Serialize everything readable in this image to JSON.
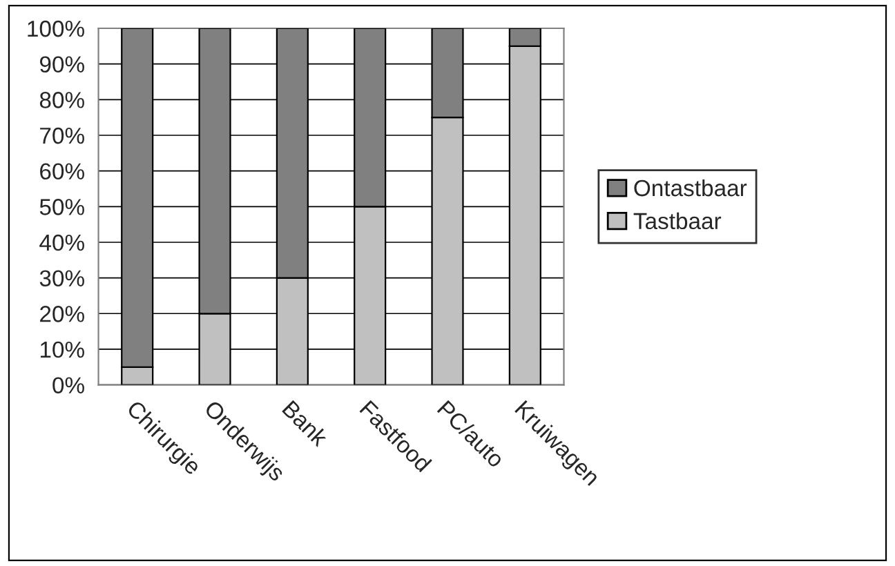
{
  "chart_data": {
    "type": "bar",
    "stacked": true,
    "categories": [
      "Chirurgie",
      "Onderwijs",
      "Bank",
      "Fastfood",
      "PC/auto",
      "Kruiwagen"
    ],
    "series": [
      {
        "name": "Tastbaar",
        "color": "#c0c0c0",
        "values": [
          5,
          20,
          30,
          50,
          75,
          95
        ]
      },
      {
        "name": "Ontastbaar",
        "color": "#808080",
        "values": [
          95,
          80,
          70,
          50,
          25,
          5
        ]
      }
    ],
    "ylim": [
      0,
      100
    ],
    "yticks": [
      {
        "value": 0,
        "label": "0%"
      },
      {
        "value": 10,
        "label": "10%"
      },
      {
        "value": 20,
        "label": "20%"
      },
      {
        "value": 30,
        "label": "30%"
      },
      {
        "value": 40,
        "label": "40%"
      },
      {
        "value": 50,
        "label": "50%"
      },
      {
        "value": 60,
        "label": "60%"
      },
      {
        "value": 70,
        "label": "70%"
      },
      {
        "value": 80,
        "label": "80%"
      },
      {
        "value": 90,
        "label": "90%"
      },
      {
        "value": 100,
        "label": "100%"
      }
    ],
    "grid": "y",
    "legend": "right"
  }
}
